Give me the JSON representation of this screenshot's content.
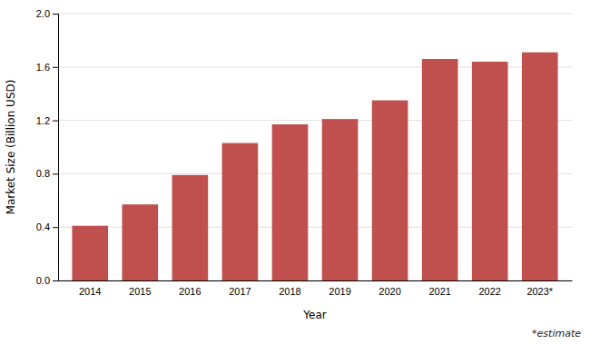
{
  "chart_data": {
    "type": "bar",
    "categories": [
      "2014",
      "2015",
      "2016",
      "2017",
      "2018",
      "2019",
      "2020",
      "2021",
      "2022",
      "2023*"
    ],
    "values": [
      0.41,
      0.57,
      0.79,
      1.03,
      1.17,
      1.21,
      1.35,
      1.66,
      1.64,
      1.71
    ],
    "color": "#c0504d",
    "xlabel": "Year",
    "ylabel": "Market Size (Billion USD)",
    "ylim": [
      0,
      2.0
    ],
    "yticks": [
      {
        "value": 0,
        "label": "0.0"
      },
      0.4,
      0.8,
      1.2,
      1.6,
      {
        "value": 2.0,
        "label": "2.0"
      }
    ],
    "grid": true,
    "annotations": [
      "*estimate"
    ]
  }
}
